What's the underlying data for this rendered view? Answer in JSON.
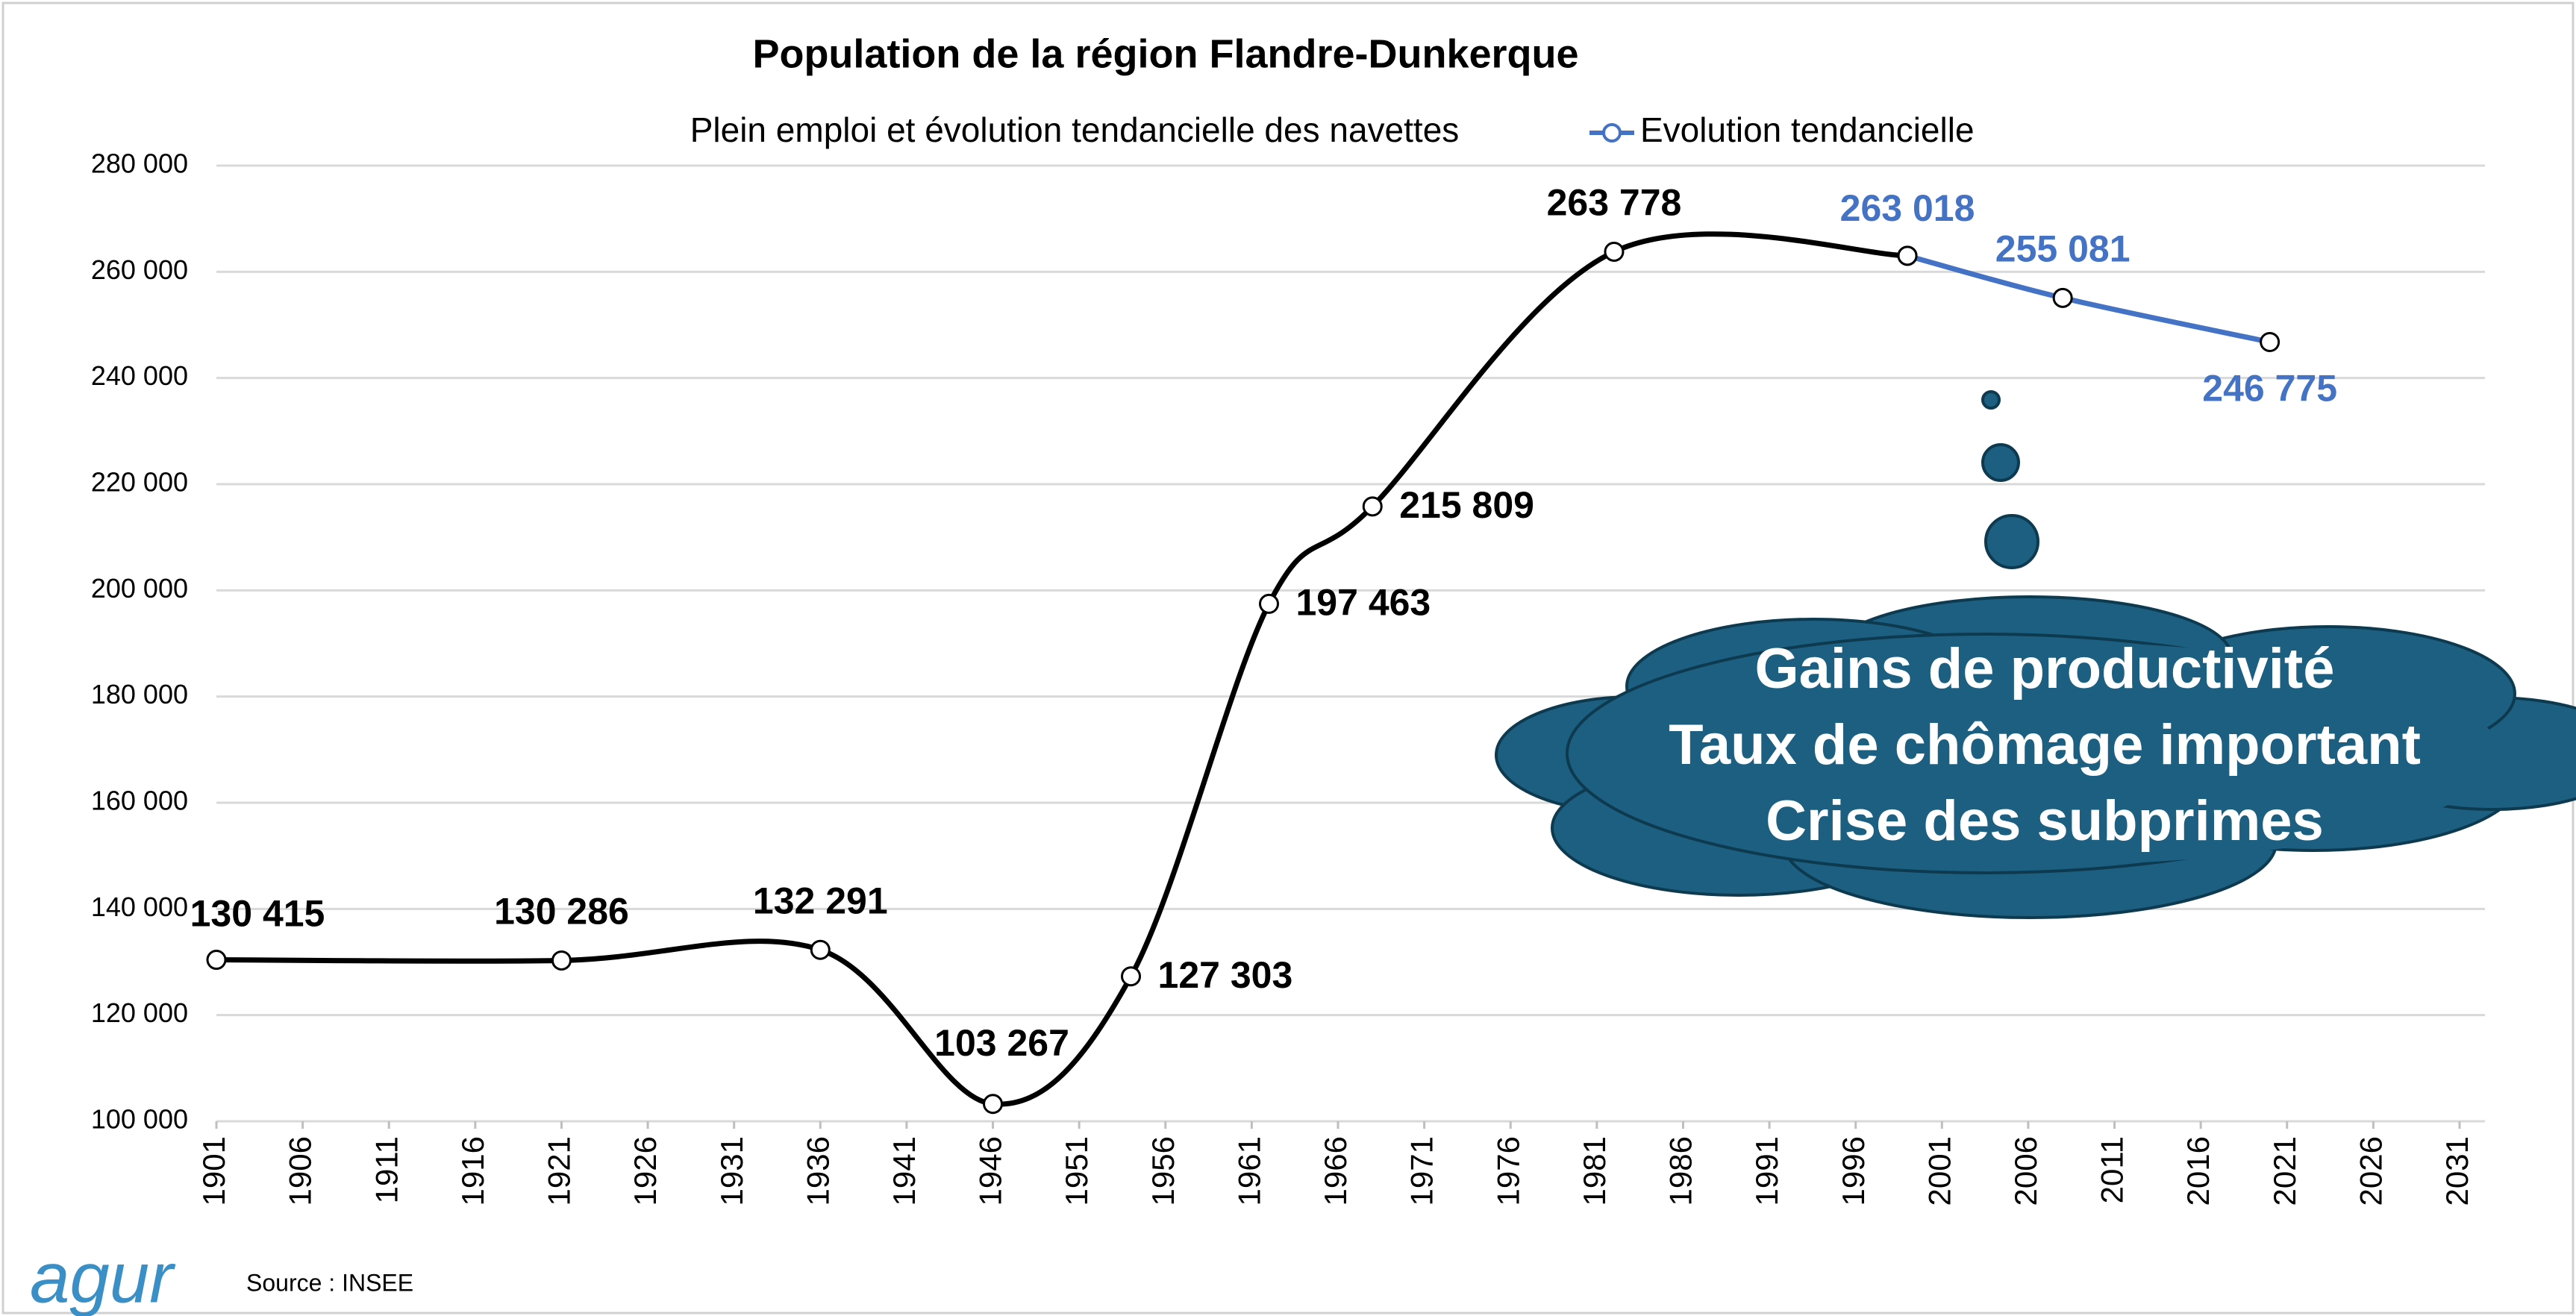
{
  "chart_data": {
    "type": "line",
    "title": "Population de la région Flandre-Dunkerque",
    "subtitle": "Plein emploi et évolution tendancielle des navettes",
    "source": "Source : INSEE",
    "logo": "agur",
    "xlim": [
      1901,
      2031
    ],
    "xticks": [
      1901,
      1906,
      1911,
      1916,
      1921,
      1926,
      1931,
      1936,
      1941,
      1946,
      1951,
      1956,
      1961,
      1966,
      1971,
      1976,
      1981,
      1986,
      1991,
      1996,
      2001,
      2006,
      2011,
      2016,
      2021,
      2026,
      2031
    ],
    "ylim": [
      100000,
      280000
    ],
    "yticks": [
      {
        "value": 100000,
        "label": "100 000"
      },
      {
        "value": 120000,
        "label": "120 000"
      },
      {
        "value": 140000,
        "label": "140 000"
      },
      {
        "value": 160000,
        "label": "160 000"
      },
      {
        "value": 180000,
        "label": "180 000"
      },
      {
        "value": 200000,
        "label": "200 000"
      },
      {
        "value": 220000,
        "label": "220 000"
      },
      {
        "value": 240000,
        "label": "240 000"
      },
      {
        "value": 260000,
        "label": "260 000"
      },
      {
        "value": 280000,
        "label": "280 000"
      }
    ],
    "grid": true,
    "legend": "top",
    "series": [
      {
        "color": "#000000",
        "x": [
          1901,
          1921,
          1936,
          1946,
          1954,
          1962,
          1968,
          1982,
          1999
        ],
        "values": [
          130415,
          130286,
          132291,
          103267,
          127303,
          197463,
          215809,
          263778,
          263018
        ],
        "value_labels": [
          "130 415",
          "130 286",
          "132 291",
          "103 267",
          "127 303",
          "197 463",
          "215 809",
          "263 778",
          null
        ]
      },
      {
        "name": "Evolution tendancielle",
        "color": "#4472c4",
        "x": [
          1999,
          2008,
          2020
        ],
        "values": [
          263018,
          255081,
          246775
        ],
        "value_labels": [
          "263 018",
          "255 081",
          "246 775"
        ]
      }
    ],
    "annotations": [
      "Gains de productivité",
      "Taux de chômage important",
      "Crise des subprimes"
    ]
  }
}
